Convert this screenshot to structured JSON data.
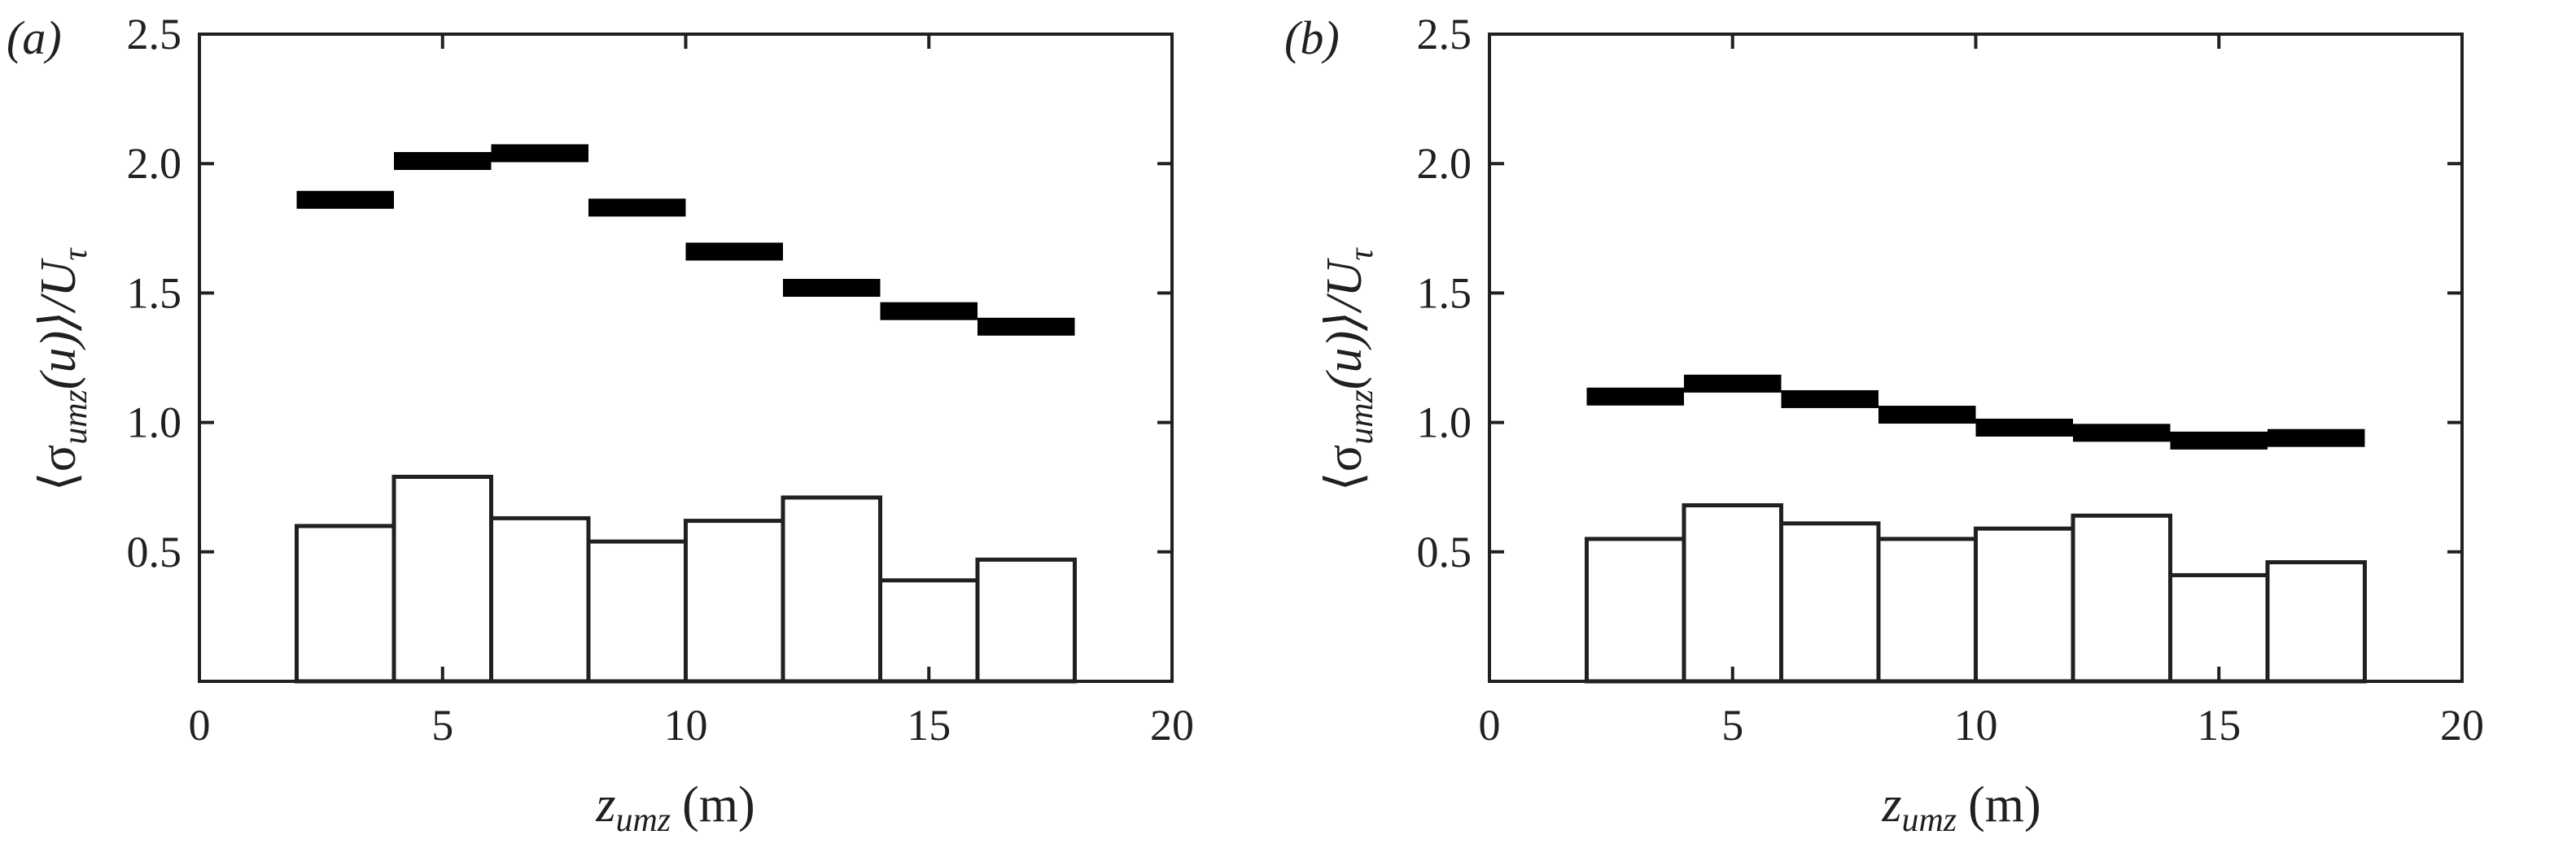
{
  "chart_data": [
    {
      "type": "bar",
      "panel_label": "(a)",
      "xlabel": {
        "main": "z",
        "sub": "umz",
        "unit": "(m)"
      },
      "ylabel": {
        "open": "⟨σ",
        "sub": "umz",
        "arg": "(u)⟩/U",
        "tau": "τ"
      },
      "xlim": [
        0,
        20
      ],
      "ylim": [
        0,
        2.5
      ],
      "xticks": [
        0,
        5,
        10,
        15,
        20
      ],
      "xtick_labels": [
        "0",
        "5",
        "10",
        "15",
        "20"
      ],
      "yticks": [
        0.5,
        1.0,
        1.5,
        2.0,
        2.5
      ],
      "ytick_labels": [
        "0.5",
        "1.0",
        "1.5",
        "2.0",
        "2.5"
      ],
      "bin_edges": [
        2,
        4,
        6,
        8,
        10,
        12,
        14,
        16,
        18
      ],
      "series": [
        {
          "style": "open-bars",
          "values": [
            0.6,
            0.79,
            0.63,
            0.54,
            0.62,
            0.71,
            0.39,
            0.47
          ]
        },
        {
          "style": "horizontal-marks",
          "values": [
            1.86,
            2.01,
            2.04,
            1.83,
            1.66,
            1.52,
            1.43,
            1.37
          ]
        }
      ],
      "grid": false
    },
    {
      "type": "bar",
      "panel_label": "(b)",
      "xlabel": {
        "main": "z",
        "sub": "umz",
        "unit": "(m)"
      },
      "ylabel": {
        "open": "⟨σ",
        "sub": "umz",
        "arg": "(u)⟩/U",
        "tau": "τ"
      },
      "xlim": [
        0,
        20
      ],
      "ylim": [
        0,
        2.5
      ],
      "xticks": [
        0,
        5,
        10,
        15,
        20
      ],
      "xtick_labels": [
        "0",
        "5",
        "10",
        "15",
        "20"
      ],
      "yticks": [
        0.5,
        1.0,
        1.5,
        2.0,
        2.5
      ],
      "ytick_labels": [
        "0.5",
        "1.0",
        "1.5",
        "2.0",
        "2.5"
      ],
      "bin_edges": [
        2,
        4,
        6,
        8,
        10,
        12,
        14,
        16,
        18
      ],
      "series": [
        {
          "style": "open-bars",
          "values": [
            0.55,
            0.68,
            0.61,
            0.55,
            0.59,
            0.64,
            0.41,
            0.46
          ]
        },
        {
          "style": "horizontal-marks",
          "values": [
            1.1,
            1.15,
            1.09,
            1.03,
            0.98,
            0.96,
            0.93,
            0.94
          ]
        }
      ],
      "grid": false
    }
  ]
}
